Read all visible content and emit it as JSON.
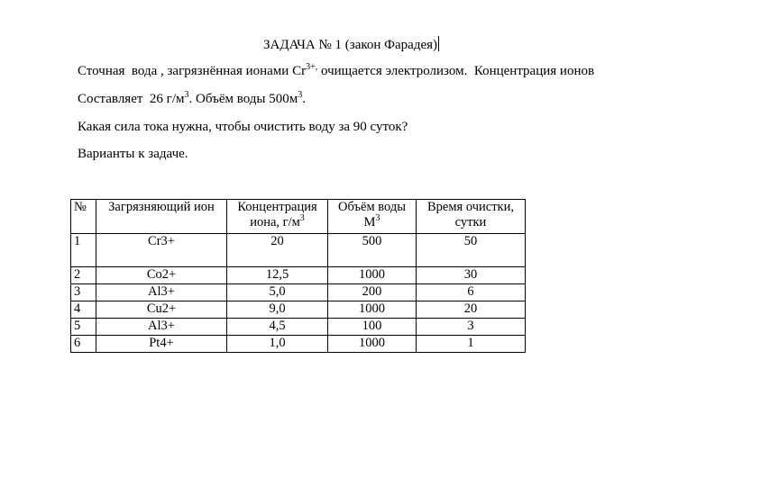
{
  "title": "ЗАДАЧА № 1 (закон Фарадея)",
  "paragraphs": {
    "p1_a": "Сточная  вода , загрязнённая ионами Cr",
    "p1_sup": "3+,",
    "p1_b": " очищается электролизом.  Концентрация ионов",
    "p2_a": "Составляет  26 г/м",
    "p2_sup1": "3",
    "p2_b": ". Объём воды 500м",
    "p2_sup2": "3",
    "p2_c": ".",
    "p3": "Какая сила тока нужна, чтобы очистить воду за 90 суток?",
    "p4": "Варианты к задаче."
  },
  "table": {
    "headers": {
      "num": "№",
      "ion": "Загрязняющий ион",
      "conc_a": "Концентрация",
      "conc_b": "иона,  г/м",
      "conc_sup": "3",
      "vol_a": "Объём воды",
      "vol_b": "М",
      "vol_sup": "3",
      "time_a": "Время очистки,",
      "time_b": "сутки"
    },
    "rows": [
      [
        "1",
        "Cr3+",
        "20",
        "500",
        "50"
      ],
      [
        "2",
        "Co2+",
        "12,5",
        "1000",
        "30"
      ],
      [
        "3",
        "Al3+",
        "5,0",
        "200",
        "6"
      ],
      [
        "4",
        "Cu2+",
        "9,0",
        "1000",
        "20"
      ],
      [
        "5",
        "Al3+",
        "4,5",
        "100",
        "3"
      ],
      [
        "6",
        "Pt4+",
        "1,0",
        "1000",
        "1"
      ]
    ]
  }
}
